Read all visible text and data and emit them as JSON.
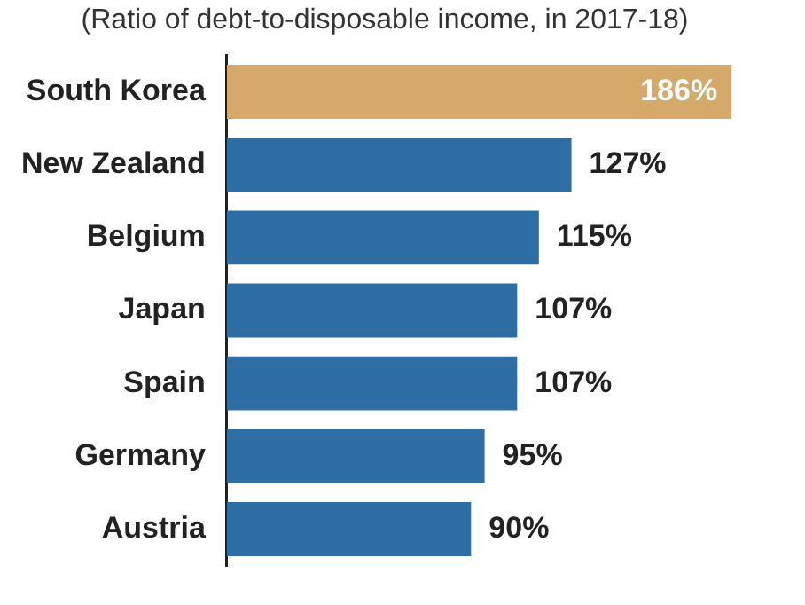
{
  "chart_data": {
    "type": "bar",
    "orientation": "horizontal",
    "subtitle": "(Ratio of debt-to-disposable income, in 2017-18)",
    "categories": [
      "South Korea",
      "New Zealand",
      "Belgium",
      "Japan",
      "Spain",
      "Germany",
      "Austria"
    ],
    "values": [
      186,
      127,
      115,
      107,
      107,
      95,
      90
    ],
    "colors": [
      "#d4a96a",
      "#2f6ea5",
      "#2f6ea5",
      "#2f6ea5",
      "#2f6ea5",
      "#2f6ea5",
      "#2f6ea5"
    ],
    "value_labels": [
      "186%",
      "127%",
      "115%",
      "107%",
      "107%",
      "95%",
      "90%"
    ],
    "legend": false
  }
}
